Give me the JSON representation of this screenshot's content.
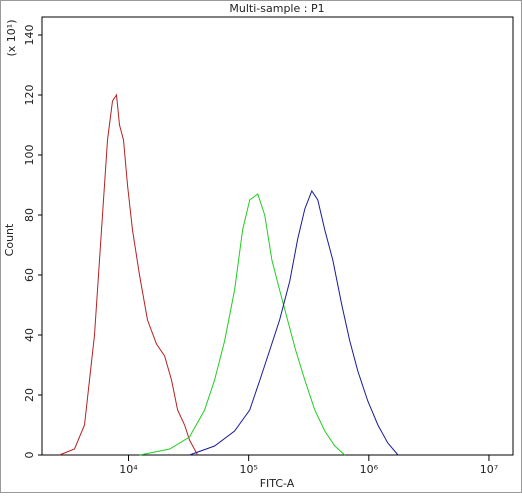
{
  "chart_data": {
    "type": "line",
    "title": "Multi-sample : P1",
    "x_label": "FITC-A",
    "y_label": "Count",
    "y_annotation": "(x 10¹)",
    "x_scale": "log",
    "xlim": [
      1905,
      15850000
    ],
    "ylim": [
      0,
      146
    ],
    "xticks": [
      {
        "value": 10000,
        "label": "10⁴"
      },
      {
        "value": 100000,
        "label": "10⁵"
      },
      {
        "value": 1000000,
        "label": "10⁶"
      },
      {
        "value": 10000000,
        "label": "10⁷"
      }
    ],
    "yticks": [
      0,
      20,
      40,
      60,
      80,
      100,
      120,
      140
    ],
    "series": [
      {
        "color": "#b22222",
        "x": [
          2661,
          3548,
          4300,
          5210,
          6070,
          6680,
          7360,
          7940,
          8410,
          9080,
          9810,
          10800,
          12350,
          14400,
          17100,
          19950,
          22800,
          25600,
          29300,
          32200,
          37600
        ],
        "values": [
          0,
          2,
          10,
          40,
          80,
          105,
          118,
          120,
          110,
          105,
          90,
          75,
          60,
          45,
          37,
          33,
          25,
          15,
          10,
          5,
          0
        ]
      },
      {
        "color": "#22cc22",
        "x": [
          12400,
          22000,
          32200,
          43000,
          52100,
          63100,
          76400,
          89100,
          102000,
          119000,
          136000,
          156000,
          181000,
          211000,
          246000,
          293000,
          355000,
          430000,
          521000,
          631000
        ],
        "values": [
          0,
          2,
          6,
          15,
          25,
          38,
          55,
          75,
          85,
          87,
          80,
          65,
          55,
          45,
          35,
          25,
          15,
          8,
          3,
          0
        ]
      },
      {
        "color": "#1a1a99",
        "x": [
          32200,
          52100,
          76400,
          102000,
          124000,
          150000,
          181000,
          220000,
          256000,
          293000,
          335000,
          376000,
          430000,
          501000,
          596000,
          695000,
          809000,
          981000,
          1190000,
          1440000,
          1750000
        ],
        "values": [
          0,
          3,
          8,
          15,
          25,
          35,
          45,
          58,
          72,
          82,
          88,
          85,
          75,
          65,
          50,
          38,
          28,
          18,
          10,
          4,
          0
        ]
      }
    ]
  }
}
